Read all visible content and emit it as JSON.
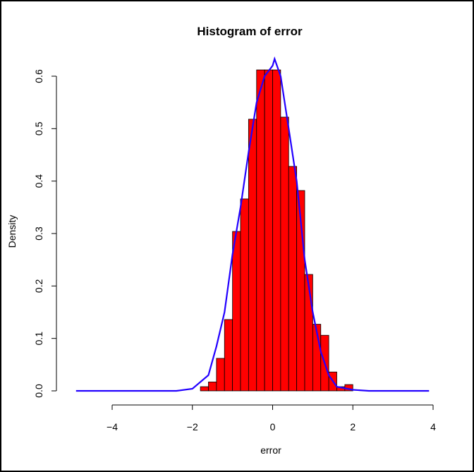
{
  "chart_data": {
    "type": "bar",
    "title": "Histogram of error",
    "xlabel": "error",
    "ylabel": "Density",
    "xlim": [
      -5,
      4
    ],
    "ylim": [
      0,
      0.63
    ],
    "x_ticks": [
      "−4",
      "−2",
      "0",
      "2",
      "4"
    ],
    "x_tick_values": [
      -4,
      -2,
      0,
      2,
      4
    ],
    "y_ticks": [
      "0.0",
      "0.1",
      "0.2",
      "0.3",
      "0.4",
      "0.5",
      "0.6"
    ],
    "y_tick_values": [
      0,
      0.1,
      0.2,
      0.3,
      0.4,
      0.5,
      0.6
    ],
    "bin_width": 0.2,
    "bins": [
      {
        "start": -1.8,
        "value": 0.008
      },
      {
        "start": -1.6,
        "value": 0.017
      },
      {
        "start": -1.4,
        "value": 0.062
      },
      {
        "start": -1.2,
        "value": 0.136
      },
      {
        "start": -1.0,
        "value": 0.304
      },
      {
        "start": -0.8,
        "value": 0.366
      },
      {
        "start": -0.6,
        "value": 0.518
      },
      {
        "start": -0.4,
        "value": 0.612
      },
      {
        "start": -0.2,
        "value": 0.612
      },
      {
        "start": 0.0,
        "value": 0.612
      },
      {
        "start": 0.2,
        "value": 0.522
      },
      {
        "start": 0.4,
        "value": 0.428
      },
      {
        "start": 0.6,
        "value": 0.382
      },
      {
        "start": 0.8,
        "value": 0.222
      },
      {
        "start": 1.0,
        "value": 0.127
      },
      {
        "start": 1.2,
        "value": 0.106
      },
      {
        "start": 1.4,
        "value": 0.036
      },
      {
        "start": 1.6,
        "value": 0.008
      },
      {
        "start": 1.8,
        "value": 0.012
      }
    ],
    "density_curve": {
      "x": [
        -4.9,
        -2.4,
        -2.0,
        -1.6,
        -1.4,
        -1.2,
        -1.0,
        -0.8,
        -0.6,
        -0.4,
        -0.2,
        0.0,
        0.05,
        0.2,
        0.4,
        0.6,
        0.8,
        1.0,
        1.2,
        1.4,
        1.6,
        2.0,
        2.4,
        3.9
      ],
      "y": [
        0.0,
        0.0,
        0.004,
        0.03,
        0.085,
        0.15,
        0.26,
        0.35,
        0.455,
        0.55,
        0.6,
        0.62,
        0.633,
        0.6,
        0.5,
        0.4,
        0.25,
        0.15,
        0.075,
        0.03,
        0.008,
        0.002,
        0.0,
        0.0
      ]
    },
    "colors": {
      "bar_fill": "#ff0000",
      "bar_stroke": "#000000",
      "curve": "#2200ff"
    },
    "grid": false
  }
}
